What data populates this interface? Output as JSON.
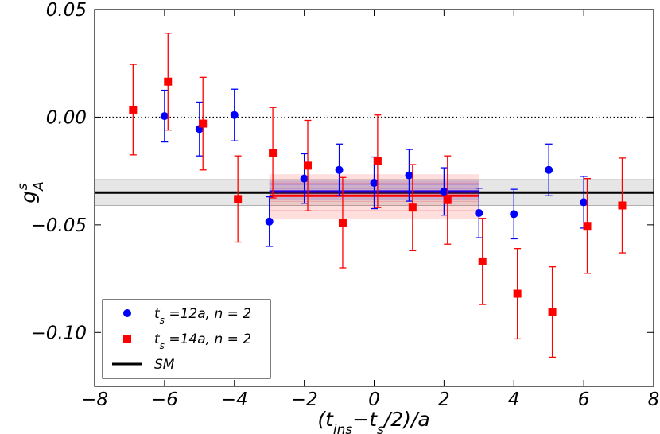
{
  "chart_data": {
    "type": "scatter",
    "title": "",
    "xlabel": "(t_ins−t_s/2)/a",
    "ylabel": "g_A^s",
    "xlim": [
      -8,
      8
    ],
    "ylim": [
      -0.125,
      0.05
    ],
    "xticks": [
      -8,
      -6,
      -4,
      -2,
      0,
      2,
      4,
      6,
      8
    ],
    "xtick_labels": [
      "−8",
      "−6",
      "−4",
      "−2",
      "0",
      "2",
      "4",
      "6",
      "8"
    ],
    "yticks": [
      0.05,
      0.0,
      -0.05,
      -0.1
    ],
    "ytick_labels": [
      "0.05",
      "0.00",
      "−0.05",
      "−0.10"
    ],
    "reference_line": {
      "y": 0.0,
      "style": "dotted"
    },
    "sm_band": {
      "name": "SM",
      "value": -0.035,
      "lower": -0.041,
      "upper": -0.029,
      "color": "#000000"
    },
    "fit_bands": [
      {
        "series": "ts12",
        "x_range": [
          -3,
          3
        ],
        "value": -0.0345,
        "lower": -0.0385,
        "upper": -0.0295,
        "color": "#0000ff"
      },
      {
        "series": "ts14",
        "x_range": [
          -3,
          3
        ],
        "value": -0.0365,
        "lower": -0.0475,
        "upper": -0.0265,
        "color": "#ff0000"
      }
    ],
    "series": [
      {
        "id": "ts12",
        "name_main": "t",
        "name_sub": "s",
        "name_rest": " =12a, n = 2",
        "marker": "circle",
        "color": "#0000ff",
        "points": [
          {
            "x": -6,
            "y": 0.0005,
            "err": 0.012
          },
          {
            "x": -5,
            "y": -0.0055,
            "err": 0.0125
          },
          {
            "x": -4,
            "y": 0.001,
            "err": 0.012
          },
          {
            "x": -3,
            "y": -0.0485,
            "err": 0.0115
          },
          {
            "x": -2,
            "y": -0.0285,
            "err": 0.0115
          },
          {
            "x": -1,
            "y": -0.0245,
            "err": 0.012
          },
          {
            "x": 0,
            "y": -0.0305,
            "err": 0.012
          },
          {
            "x": 1,
            "y": -0.027,
            "err": 0.012
          },
          {
            "x": 2,
            "y": -0.0345,
            "err": 0.011
          },
          {
            "x": 3,
            "y": -0.0445,
            "err": 0.0115
          },
          {
            "x": 4,
            "y": -0.045,
            "err": 0.0115
          },
          {
            "x": 5,
            "y": -0.0245,
            "err": 0.012
          },
          {
            "x": 6,
            "y": -0.0395,
            "err": 0.012
          }
        ]
      },
      {
        "id": "ts14",
        "name_main": "t",
        "name_sub": "s",
        "name_rest": " =14a, n = 2",
        "marker": "square",
        "color": "#ff0000",
        "points": [
          {
            "x": -6.9,
            "y": 0.0035,
            "err": 0.021
          },
          {
            "x": -5.9,
            "y": 0.0165,
            "err": 0.0225
          },
          {
            "x": -4.9,
            "y": -0.003,
            "err": 0.0215
          },
          {
            "x": -3.9,
            "y": -0.038,
            "err": 0.02
          },
          {
            "x": -2.9,
            "y": -0.0165,
            "err": 0.021
          },
          {
            "x": -1.9,
            "y": -0.0225,
            "err": 0.021
          },
          {
            "x": -0.9,
            "y": -0.049,
            "err": 0.021
          },
          {
            "x": 0.1,
            "y": -0.0205,
            "err": 0.0215
          },
          {
            "x": 1.1,
            "y": -0.042,
            "err": 0.02
          },
          {
            "x": 2.1,
            "y": -0.0385,
            "err": 0.0205
          },
          {
            "x": 3.1,
            "y": -0.067,
            "err": 0.02
          },
          {
            "x": 4.1,
            "y": -0.082,
            "err": 0.021
          },
          {
            "x": 5.1,
            "y": -0.0905,
            "err": 0.021
          },
          {
            "x": 6.1,
            "y": -0.0505,
            "err": 0.022
          },
          {
            "x": 7.1,
            "y": -0.041,
            "err": 0.022
          }
        ]
      }
    ],
    "legend": {
      "position": "lower-left",
      "entries": [
        {
          "series": "ts12",
          "main": "t",
          "sub": "s",
          "rest": " =12a, n = 2"
        },
        {
          "series": "ts14",
          "main": "t",
          "sub": "s",
          "rest": " =14a, n = 2"
        },
        {
          "series": "sm",
          "main": "SM",
          "sub": "",
          "rest": ""
        }
      ]
    }
  }
}
